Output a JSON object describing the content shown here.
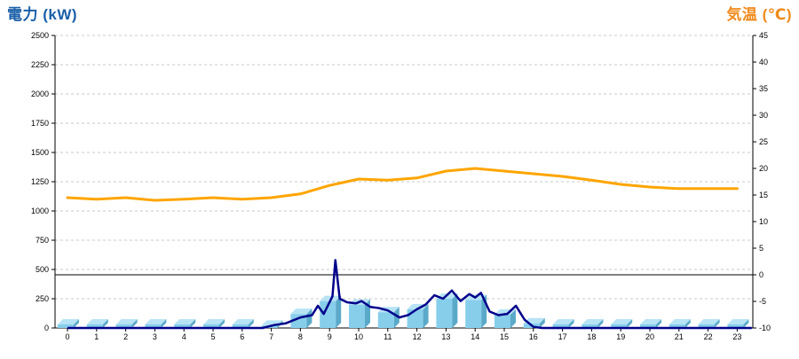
{
  "chart_data": {
    "type": "bar+line",
    "ylabel_left": "電力 (kW)",
    "ylabel_right": "気温 (℃)",
    "colors": {
      "left_label": "#1a5fa8",
      "right_label": "#f08a1c",
      "temperature_line": "#ffa500",
      "power_line": "#00008b",
      "bar_front": "#87ceeb",
      "bar_side": "#5ba9c9",
      "bar_top": "#b7e3f5",
      "zero_line": "#000000",
      "grid": "#c8c8c8"
    },
    "y_left": {
      "min": 0,
      "max": 2500,
      "ticks": [
        0,
        250,
        500,
        750,
        1000,
        1250,
        1500,
        1750,
        2000,
        2250,
        2500
      ]
    },
    "y_right": {
      "min": -10,
      "max": 45,
      "ticks": [
        -10,
        -5,
        0,
        5,
        10,
        15,
        20,
        25,
        30,
        35,
        40,
        45
      ]
    },
    "x": {
      "ticks": [
        0,
        1,
        2,
        3,
        4,
        5,
        6,
        7,
        8,
        9,
        10,
        11,
        12,
        13,
        14,
        15,
        16,
        17,
        18,
        19,
        20,
        21,
        22,
        23
      ]
    },
    "grid": true,
    "bars": {
      "name": "",
      "hours": [
        0,
        1,
        2,
        3,
        4,
        5,
        6,
        7,
        8,
        9,
        10,
        11,
        12,
        13,
        14,
        15,
        16,
        17,
        18,
        19,
        20,
        21,
        22,
        23
      ],
      "values": [
        0,
        0,
        0,
        0,
        0,
        0,
        0,
        20,
        120,
        230,
        200,
        135,
        160,
        250,
        240,
        115,
        40,
        0,
        0,
        0,
        0,
        0,
        0,
        0
      ]
    },
    "power_line": {
      "name": "",
      "points": [
        [
          0,
          0
        ],
        [
          6.7,
          0
        ],
        [
          7.1,
          25
        ],
        [
          7.5,
          40
        ],
        [
          8.0,
          90
        ],
        [
          8.4,
          110
        ],
        [
          8.6,
          190
        ],
        [
          8.8,
          120
        ],
        [
          9.1,
          270
        ],
        [
          9.2,
          580
        ],
        [
          9.35,
          250
        ],
        [
          9.6,
          220
        ],
        [
          9.9,
          210
        ],
        [
          10.1,
          230
        ],
        [
          10.4,
          180
        ],
        [
          10.7,
          170
        ],
        [
          11.0,
          150
        ],
        [
          11.4,
          90
        ],
        [
          11.7,
          110
        ],
        [
          12.0,
          160
        ],
        [
          12.3,
          200
        ],
        [
          12.6,
          280
        ],
        [
          12.9,
          250
        ],
        [
          13.2,
          320
        ],
        [
          13.5,
          230
        ],
        [
          13.8,
          290
        ],
        [
          14.0,
          260
        ],
        [
          14.2,
          300
        ],
        [
          14.5,
          140
        ],
        [
          14.8,
          110
        ],
        [
          15.1,
          120
        ],
        [
          15.4,
          190
        ],
        [
          15.7,
          70
        ],
        [
          16.0,
          10
        ],
        [
          16.3,
          0
        ],
        [
          23.5,
          0
        ]
      ]
    },
    "temperature_line": {
      "name": "",
      "points": [
        [
          0,
          14.5
        ],
        [
          1,
          14.2
        ],
        [
          2,
          14.5
        ],
        [
          3,
          14.0
        ],
        [
          4,
          14.2
        ],
        [
          5,
          14.5
        ],
        [
          6,
          14.2
        ],
        [
          7,
          14.5
        ],
        [
          8,
          15.2
        ],
        [
          9,
          16.8
        ],
        [
          10,
          18.0
        ],
        [
          11,
          17.8
        ],
        [
          12,
          18.2
        ],
        [
          13,
          19.5
        ],
        [
          14,
          20.0
        ],
        [
          15,
          19.5
        ],
        [
          16,
          19.0
        ],
        [
          17,
          18.5
        ],
        [
          18,
          17.8
        ],
        [
          19,
          17.0
        ],
        [
          20,
          16.5
        ],
        [
          21,
          16.2
        ],
        [
          22,
          16.2
        ],
        [
          23,
          16.2
        ]
      ]
    }
  }
}
